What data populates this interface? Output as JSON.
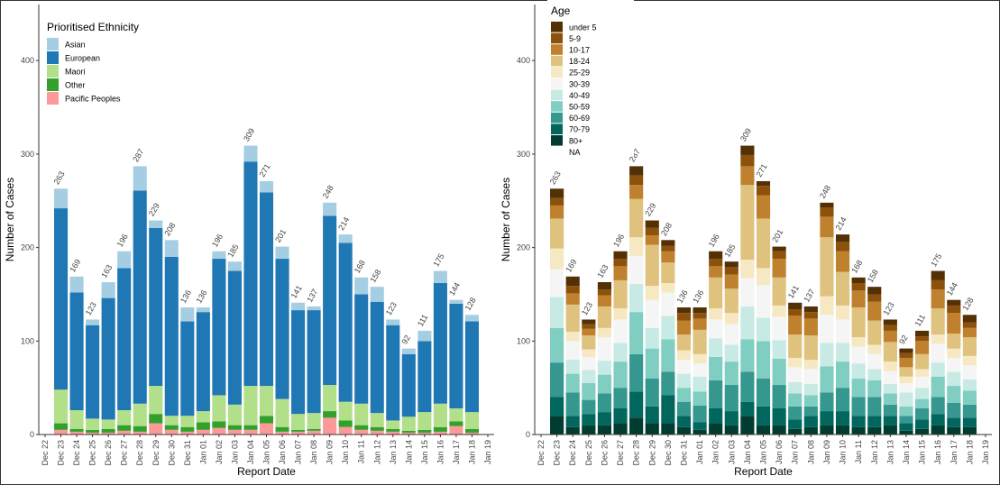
{
  "chart_data": [
    {
      "type": "bar",
      "stacked": true,
      "legend_title": "Prioritised Ethnicity",
      "x_label": "Report Date",
      "y_label": "Number of Cases",
      "categories": [
        "Dec 22",
        "Dec 23",
        "Dec 24",
        "Dec 25",
        "Dec 26",
        "Dec 27",
        "Dec 28",
        "Dec 29",
        "Dec 30",
        "Dec 31",
        "Jan 01",
        "Jan 02",
        "Jan 03",
        "Jan 04",
        "Jan 05",
        "Jan 06",
        "Jan 07",
        "Jan 08",
        "Jan 09",
        "Jan 10",
        "Jan 11",
        "Jan 12",
        "Jan 13",
        "Jan 14",
        "Jan 15",
        "Jan 16",
        "Jan 17",
        "Jan 18",
        "Jan 19"
      ],
      "ylim": [
        0,
        460
      ],
      "yticks": [
        0,
        100,
        200,
        300,
        400
      ],
      "legend": "top-left",
      "totals": [
        null,
        263,
        169,
        123,
        163,
        196,
        287,
        229,
        208,
        136,
        136,
        196,
        185,
        309,
        271,
        201,
        141,
        137,
        248,
        214,
        168,
        158,
        123,
        92,
        111,
        175,
        144,
        128,
        null
      ],
      "series": [
        {
          "name": "Asian",
          "color": "#a6cee3",
          "values": [
            null,
            21,
            17,
            6,
            17,
            18,
            26,
            8,
            18,
            15,
            5,
            8,
            10,
            17,
            12,
            13,
            8,
            4,
            14,
            9,
            18,
            16,
            6,
            6,
            11,
            13,
            4,
            7,
            null
          ]
        },
        {
          "name": "European",
          "color": "#1f78b4",
          "values": [
            null,
            194,
            126,
            100,
            130,
            152,
            228,
            169,
            170,
            101,
            106,
            146,
            143,
            240,
            207,
            150,
            111,
            110,
            181,
            170,
            117,
            119,
            102,
            67,
            76,
            129,
            112,
            97,
            null
          ]
        },
        {
          "name": "Maori",
          "color": "#b2df8a",
          "values": [
            null,
            36,
            20,
            12,
            10,
            16,
            24,
            30,
            10,
            12,
            12,
            28,
            22,
            42,
            32,
            30,
            17,
            17,
            28,
            20,
            23,
            15,
            9,
            15,
            19,
            25,
            14,
            18,
            null
          ]
        },
        {
          "name": "Other",
          "color": "#33a02c",
          "values": [
            null,
            7,
            3,
            3,
            4,
            6,
            6,
            10,
            5,
            5,
            8,
            7,
            5,
            5,
            8,
            5,
            2,
            2,
            7,
            7,
            5,
            4,
            3,
            2,
            3,
            5,
            5,
            4,
            null
          ]
        },
        {
          "name": "Pacific Peoples",
          "color": "#fb9a99",
          "values": [
            null,
            5,
            3,
            2,
            2,
            4,
            3,
            12,
            5,
            3,
            5,
            7,
            5,
            5,
            12,
            3,
            3,
            4,
            18,
            8,
            5,
            4,
            3,
            2,
            2,
            3,
            9,
            2,
            null
          ]
        }
      ]
    },
    {
      "type": "bar",
      "stacked": true,
      "legend_title": "Age",
      "x_label": "Report Date",
      "y_label": "Number of Cases",
      "categories": [
        "Dec 22",
        "Dec 23",
        "Dec 24",
        "Dec 25",
        "Dec 26",
        "Dec 27",
        "Dec 28",
        "Dec 29",
        "Dec 30",
        "Dec 31",
        "Jan 01",
        "Jan 02",
        "Jan 03",
        "Jan 04",
        "Jan 05",
        "Jan 06",
        "Jan 07",
        "Jan 08",
        "Jan 09",
        "Jan 10",
        "Jan 11",
        "Jan 12",
        "Jan 13",
        "Jan 14",
        "Jan 15",
        "Jan 16",
        "Jan 17",
        "Jan 18",
        "Jan 19"
      ],
      "ylim": [
        0,
        460
      ],
      "yticks": [
        0,
        100,
        200,
        300,
        400
      ],
      "legend": "top-left",
      "totals": [
        null,
        263,
        169,
        123,
        163,
        196,
        287,
        229,
        208,
        136,
        136,
        196,
        185,
        309,
        271,
        201,
        141,
        137,
        248,
        214,
        168,
        158,
        123,
        92,
        111,
        175,
        144,
        128,
        null
      ],
      "series": [
        {
          "name": "under 5",
          "color": "#543005",
          "values": [
            null,
            10,
            10,
            5,
            8,
            8,
            10,
            8,
            6,
            6,
            6,
            8,
            6,
            10,
            5,
            5,
            7,
            6,
            5,
            8,
            6,
            8,
            6,
            5,
            6,
            10,
            6,
            8,
            null
          ]
        },
        {
          "name": "5-9",
          "color": "#8c510a",
          "values": [
            null,
            8,
            8,
            5,
            6,
            8,
            10,
            8,
            6,
            8,
            6,
            8,
            8,
            12,
            10,
            8,
            7,
            7,
            10,
            10,
            8,
            8,
            6,
            5,
            5,
            10,
            8,
            6,
            null
          ]
        },
        {
          "name": "10-17",
          "color": "#bf812d",
          "values": [
            null,
            14,
            12,
            7,
            12,
            15,
            15,
            10,
            12,
            15,
            12,
            12,
            15,
            20,
            25,
            20,
            20,
            18,
            22,
            22,
            18,
            20,
            12,
            10,
            14,
            20,
            22,
            10,
            null
          ]
        },
        {
          "name": "18-24",
          "color": "#dfc27d",
          "values": [
            null,
            32,
            29,
            15,
            23,
            30,
            41,
            44,
            22,
            17,
            26,
            33,
            26,
            80,
            53,
            30,
            25,
            26,
            63,
            36,
            32,
            26,
            21,
            10,
            16,
            28,
            16,
            20,
            null
          ]
        },
        {
          "name": "25-29",
          "color": "#f6e8c3",
          "values": [
            null,
            22,
            10,
            8,
            10,
            12,
            20,
            15,
            10,
            10,
            10,
            12,
            12,
            20,
            18,
            12,
            10,
            10,
            20,
            15,
            10,
            10,
            10,
            7,
            8,
            10,
            10,
            10,
            null
          ]
        },
        {
          "name": "30-39",
          "color": "#f5f5f5",
          "values": [
            null,
            30,
            20,
            14,
            25,
            25,
            30,
            30,
            25,
            15,
            14,
            20,
            22,
            30,
            35,
            25,
            16,
            16,
            30,
            25,
            18,
            16,
            14,
            10,
            12,
            20,
            15,
            15,
            null
          ]
        },
        {
          "name": "40-49",
          "color": "#c7eae5",
          "values": [
            null,
            33,
            15,
            14,
            15,
            20,
            30,
            22,
            25,
            15,
            16,
            20,
            18,
            35,
            25,
            20,
            12,
            12,
            25,
            20,
            16,
            12,
            10,
            15,
            12,
            15,
            15,
            12,
            null
          ]
        },
        {
          "name": "50-59",
          "color": "#80cdc1",
          "values": [
            null,
            37,
            20,
            18,
            20,
            28,
            45,
            32,
            35,
            15,
            15,
            25,
            25,
            35,
            40,
            28,
            14,
            12,
            28,
            28,
            20,
            18,
            12,
            10,
            10,
            22,
            18,
            15,
            null
          ]
        },
        {
          "name": "60-69",
          "color": "#35978f",
          "values": [
            null,
            37,
            25,
            15,
            20,
            22,
            40,
            30,
            25,
            15,
            18,
            30,
            28,
            32,
            30,
            25,
            14,
            10,
            20,
            25,
            20,
            20,
            12,
            8,
            12,
            18,
            16,
            14,
            null
          ]
        },
        {
          "name": "70-79",
          "color": "#01665e",
          "values": [
            null,
            20,
            12,
            12,
            14,
            16,
            28,
            18,
            30,
            12,
            8,
            16,
            15,
            15,
            20,
            18,
            10,
            12,
            15,
            15,
            12,
            12,
            10,
            8,
            10,
            12,
            10,
            10,
            null
          ]
        },
        {
          "name": "80+",
          "color": "#003c30",
          "values": [
            null,
            20,
            8,
            10,
            10,
            12,
            18,
            12,
            12,
            8,
            5,
            12,
            10,
            20,
            10,
            10,
            6,
            8,
            10,
            10,
            8,
            8,
            10,
            4,
            6,
            10,
            8,
            8,
            null
          ]
        },
        {
          "name": "NA",
          "color": "#ffffff",
          "values": [
            null,
            0,
            0,
            0,
            0,
            0,
            0,
            0,
            0,
            0,
            0,
            0,
            0,
            0,
            0,
            0,
            0,
            0,
            0,
            0,
            0,
            0,
            0,
            0,
            0,
            0,
            0,
            0,
            null
          ]
        }
      ]
    }
  ]
}
